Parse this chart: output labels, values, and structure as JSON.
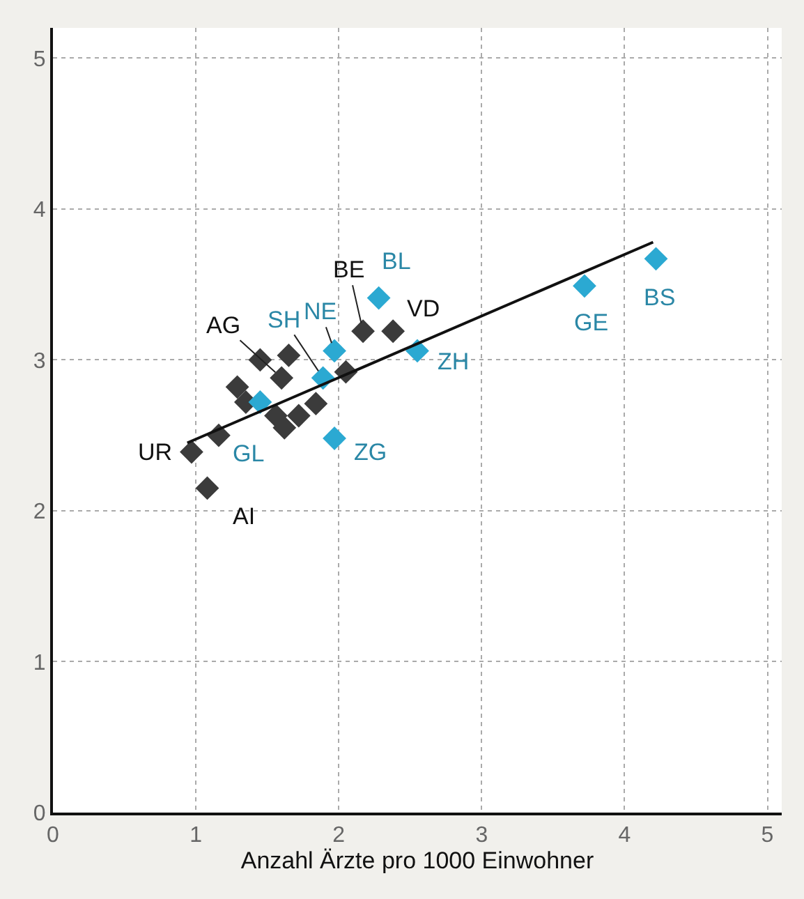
{
  "chart_data": {
    "type": "scatter",
    "xlabel": "Anzahl Ärzte pro 1000 Einwohner",
    "xlim": [
      0,
      5.1
    ],
    "ylim": [
      0,
      5.2
    ],
    "xticks": [
      0,
      1,
      2,
      3,
      4,
      5
    ],
    "yticks": [
      0,
      1,
      2,
      3,
      4,
      5
    ],
    "grid": true,
    "marker": "diamond",
    "series": [
      {
        "color": "#3b3b3b",
        "x": [
          0.97,
          1.08,
          1.16,
          1.29,
          1.35,
          1.45,
          1.65,
          1.6,
          1.56,
          1.62,
          1.72,
          1.84,
          2.05,
          2.17,
          2.38
        ],
        "values": [
          2.39,
          2.15,
          2.5,
          2.82,
          2.72,
          3.0,
          3.03,
          2.88,
          2.63,
          2.55,
          2.63,
          2.71,
          2.92,
          3.19,
          3.19
        ]
      },
      {
        "color": "#2ba9d2",
        "x": [
          1.45,
          1.89,
          1.97,
          1.97,
          2.28,
          2.55,
          3.72,
          4.22
        ],
        "values": [
          2.72,
          2.88,
          3.06,
          2.48,
          3.41,
          3.06,
          3.49,
          3.67
        ]
      },
      {
        "type": "line",
        "color": "#111111",
        "marker": "none",
        "x": [
          0.94,
          4.2
        ],
        "values": [
          2.45,
          3.78
        ]
      }
    ],
    "annotations": [
      {
        "text": "UR",
        "x": 0.97,
        "y": 2.39
      },
      {
        "text": "AI",
        "x": 1.08,
        "y": 2.15
      },
      {
        "text": "AG",
        "x": 1.6,
        "y": 2.88
      },
      {
        "text": "SH",
        "x": 1.89,
        "y": 2.88
      },
      {
        "text": "NE",
        "x": 1.97,
        "y": 3.06
      },
      {
        "text": "BE",
        "x": 2.17,
        "y": 3.19
      },
      {
        "text": "VD",
        "x": 2.38,
        "y": 3.19
      },
      {
        "text": "BL",
        "x": 2.28,
        "y": 3.41
      },
      {
        "text": "GL",
        "x": 1.45,
        "y": 2.72
      },
      {
        "text": "ZG",
        "x": 1.97,
        "y": 2.48
      },
      {
        "text": "ZH",
        "x": 2.55,
        "y": 3.06
      },
      {
        "text": "GE",
        "x": 3.72,
        "y": 3.49
      },
      {
        "text": "BS",
        "x": 4.22,
        "y": 3.67
      }
    ]
  }
}
